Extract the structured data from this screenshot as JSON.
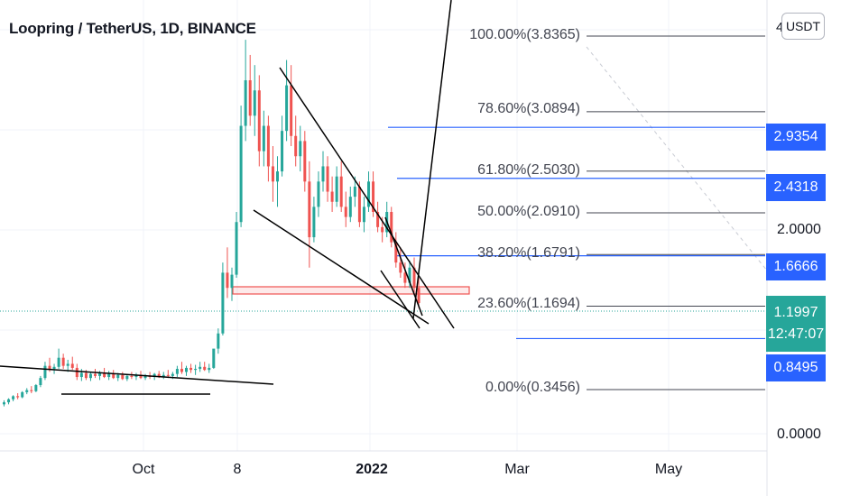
{
  "header": {
    "title": "Loopring / TetherUS, 1D, BINANCE",
    "currency": "USDT",
    "edge_tick": "4"
  },
  "price_axis": {
    "ticks": [
      "2.0000",
      "0.0000"
    ]
  },
  "time_axis": {
    "labels": [
      "Oct",
      "8",
      "2022",
      "Mar",
      "May"
    ]
  },
  "fib_levels": [
    {
      "label": "100.00%(3.8365)",
      "value": 3.8365
    },
    {
      "label": "78.60%(3.0894)",
      "value": 3.0894
    },
    {
      "label": "61.80%(2.5030)",
      "value": 2.503
    },
    {
      "label": "50.00%(2.0910)",
      "value": 2.091
    },
    {
      "label": "38.20%(1.6791)",
      "value": 1.6791
    },
    {
      "label": "23.60%(1.1694)",
      "value": 1.1694
    },
    {
      "label": "0.00%(0.3456)",
      "value": 0.3456
    }
  ],
  "price_tags": [
    {
      "label": "2.9354",
      "value": 2.9354
    },
    {
      "label": "2.4318",
      "value": 2.4318
    },
    {
      "label": "1.6666",
      "value": 1.6666
    },
    {
      "label": "0.8495",
      "value": 0.8495
    }
  ],
  "last_price": {
    "value": "1.1997",
    "countdown": "12:47:07"
  },
  "colors": {
    "up": "#26a69a",
    "down": "#ef5350",
    "line_blue": "#2962ff",
    "fib": "#434651",
    "trend": "#000000",
    "zone": "#ef5350"
  },
  "chart_data": {
    "type": "candlestick",
    "title": "Loopring / TetherUS, 1D, BINANCE",
    "y_unit": "USDT",
    "x_labels": [
      "Oct",
      "8",
      "2022",
      "Mar",
      "May"
    ],
    "y_ticks": [
      2.0,
      0.0
    ],
    "fibonacci_retracement": [
      {
        "ratio": "100.00%",
        "price": 3.8365
      },
      {
        "ratio": "78.60%",
        "price": 3.0894
      },
      {
        "ratio": "61.80%",
        "price": 2.503
      },
      {
        "ratio": "50.00%",
        "price": 2.091
      },
      {
        "ratio": "38.20%",
        "price": 1.6791
      },
      {
        "ratio": "23.60%",
        "price": 1.1694
      },
      {
        "ratio": "0.00%",
        "price": 0.3456
      }
    ],
    "horizontal_levels": [
      2.9354,
      2.4318,
      1.6666,
      0.8495
    ],
    "last_price": 1.1997,
    "grid": true,
    "series": [
      {
        "values": [
          [
            0.2,
            0.24,
            0.18,
            0.22
          ],
          [
            0.22,
            0.26,
            0.2,
            0.25
          ],
          [
            0.25,
            0.29,
            0.23,
            0.28
          ],
          [
            0.28,
            0.31,
            0.25,
            0.27
          ],
          [
            0.27,
            0.33,
            0.26,
            0.32
          ],
          [
            0.32,
            0.36,
            0.3,
            0.34
          ],
          [
            0.34,
            0.38,
            0.31,
            0.33
          ],
          [
            0.33,
            0.4,
            0.32,
            0.39
          ],
          [
            0.39,
            0.48,
            0.37,
            0.46
          ],
          [
            0.46,
            0.62,
            0.44,
            0.58
          ],
          [
            0.58,
            0.66,
            0.52,
            0.55
          ],
          [
            0.55,
            0.6,
            0.5,
            0.57
          ],
          [
            0.57,
            0.75,
            0.55,
            0.66
          ],
          [
            0.66,
            0.7,
            0.55,
            0.58
          ],
          [
            0.58,
            0.64,
            0.52,
            0.6
          ],
          [
            0.6,
            0.67,
            0.54,
            0.56
          ],
          [
            0.56,
            0.6,
            0.44,
            0.47
          ],
          [
            0.47,
            0.55,
            0.43,
            0.51
          ],
          [
            0.51,
            0.54,
            0.44,
            0.46
          ],
          [
            0.46,
            0.52,
            0.43,
            0.5
          ],
          [
            0.5,
            0.55,
            0.46,
            0.48
          ],
          [
            0.48,
            0.53,
            0.44,
            0.51
          ],
          [
            0.51,
            0.56,
            0.46,
            0.47
          ],
          [
            0.47,
            0.53,
            0.44,
            0.5
          ],
          [
            0.5,
            0.54,
            0.45,
            0.46
          ],
          [
            0.46,
            0.51,
            0.43,
            0.49
          ],
          [
            0.49,
            0.52,
            0.44,
            0.45
          ],
          [
            0.45,
            0.5,
            0.43,
            0.48
          ],
          [
            0.48,
            0.52,
            0.45,
            0.47
          ],
          [
            0.47,
            0.51,
            0.44,
            0.49
          ],
          [
            0.49,
            0.53,
            0.45,
            0.46
          ],
          [
            0.46,
            0.5,
            0.44,
            0.48
          ],
          [
            0.48,
            0.52,
            0.45,
            0.47
          ],
          [
            0.47,
            0.51,
            0.44,
            0.5
          ],
          [
            0.5,
            0.53,
            0.46,
            0.47
          ],
          [
            0.47,
            0.52,
            0.45,
            0.49
          ],
          [
            0.49,
            0.54,
            0.46,
            0.48
          ],
          [
            0.48,
            0.52,
            0.45,
            0.5
          ],
          [
            0.5,
            0.58,
            0.47,
            0.55
          ],
          [
            0.55,
            0.62,
            0.5,
            0.52
          ],
          [
            0.52,
            0.58,
            0.48,
            0.56
          ],
          [
            0.56,
            0.6,
            0.51,
            0.54
          ],
          [
            0.54,
            0.59,
            0.49,
            0.55
          ],
          [
            0.55,
            0.62,
            0.52,
            0.57
          ],
          [
            0.57,
            0.62,
            0.53,
            0.54
          ],
          [
            0.54,
            0.6,
            0.51,
            0.56
          ],
          [
            0.56,
            0.65,
            0.55,
            0.75
          ],
          [
            0.75,
            0.95,
            0.7,
            0.9
          ],
          [
            0.9,
            1.6,
            0.88,
            1.5
          ],
          [
            1.5,
            1.75,
            1.25,
            1.35
          ],
          [
            1.35,
            1.55,
            1.22,
            1.48
          ],
          [
            1.48,
            2.1,
            1.45,
            2.0
          ],
          [
            2.0,
            3.15,
            1.95,
            2.95
          ],
          [
            2.95,
            3.8,
            2.8,
            3.4
          ],
          [
            3.4,
            3.65,
            2.95,
            3.05
          ],
          [
            3.05,
            3.55,
            2.85,
            3.3
          ],
          [
            3.3,
            3.45,
            2.55,
            2.7
          ],
          [
            2.7,
            3.1,
            2.55,
            2.95
          ],
          [
            2.95,
            3.05,
            2.4,
            2.55
          ],
          [
            2.55,
            2.75,
            2.2,
            2.4
          ],
          [
            2.4,
            2.65,
            2.15,
            2.5
          ],
          [
            2.5,
            3.05,
            2.45,
            2.9
          ],
          [
            2.9,
            3.6,
            2.8,
            3.35
          ],
          [
            3.35,
            3.55,
            2.75,
            2.85
          ],
          [
            2.85,
            3.05,
            2.55,
            2.65
          ],
          [
            2.65,
            2.95,
            2.5,
            2.8
          ],
          [
            2.8,
            2.9,
            2.3,
            2.4
          ],
          [
            2.4,
            2.6,
            1.55,
            1.85
          ],
          [
            1.85,
            2.25,
            1.8,
            2.15
          ],
          [
            2.15,
            2.5,
            2.05,
            2.4
          ],
          [
            2.4,
            2.7,
            2.3,
            2.55
          ],
          [
            2.55,
            2.65,
            2.2,
            2.3
          ],
          [
            2.3,
            2.45,
            2.1,
            2.2
          ],
          [
            2.2,
            2.55,
            2.15,
            2.45
          ],
          [
            2.45,
            2.6,
            2.1,
            2.15
          ],
          [
            2.15,
            2.3,
            1.95,
            2.05
          ],
          [
            2.05,
            2.35,
            2.0,
            2.25
          ],
          [
            2.25,
            2.45,
            2.15,
            2.35
          ],
          [
            2.35,
            2.4,
            1.95,
            2.0
          ],
          [
            2.0,
            2.25,
            1.9,
            2.15
          ],
          [
            2.15,
            2.5,
            2.1,
            2.4
          ],
          [
            2.4,
            2.5,
            2.05,
            2.1
          ],
          [
            2.1,
            2.2,
            1.9,
            1.95
          ],
          [
            1.95,
            2.05,
            1.8,
            1.9
          ],
          [
            1.9,
            2.2,
            1.85,
            2.1
          ],
          [
            2.1,
            2.15,
            1.75,
            1.8
          ],
          [
            1.8,
            1.9,
            1.55,
            1.6
          ],
          [
            1.6,
            1.75,
            1.45,
            1.5
          ],
          [
            1.5,
            1.6,
            1.35,
            1.4
          ],
          [
            1.4,
            1.62,
            1.35,
            1.55
          ],
          [
            1.55,
            1.65,
            1.3,
            1.35
          ],
          [
            1.35,
            1.45,
            1.15,
            1.2
          ]
        ],
        "name": ""
      }
    ]
  }
}
